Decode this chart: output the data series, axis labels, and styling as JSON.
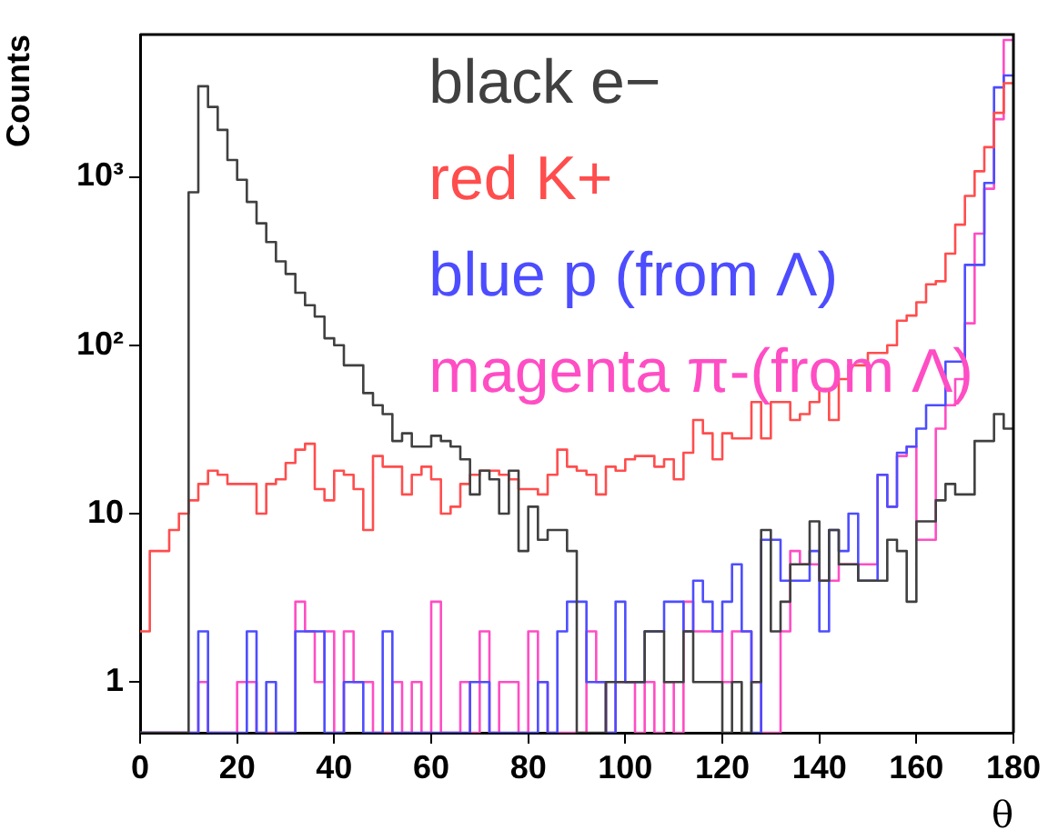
{
  "chart_data": {
    "type": "histogram",
    "xlabel": "θ",
    "ylabel": "Counts",
    "log": "y",
    "legend": "top right",
    "marker": "none",
    "bins": [
      0,
      2,
      4,
      6,
      8,
      10,
      12,
      14,
      16,
      18,
      20,
      22,
      24,
      26,
      28,
      30,
      32,
      34,
      36,
      38,
      40,
      42,
      44,
      46,
      48,
      50,
      52,
      54,
      56,
      58,
      60,
      62,
      64,
      66,
      68,
      70,
      72,
      74,
      76,
      78,
      80,
      82,
      84,
      86,
      88,
      90,
      92,
      94,
      96,
      98,
      100,
      102,
      104,
      106,
      108,
      110,
      112,
      114,
      116,
      118,
      120,
      122,
      124,
      126,
      128,
      130,
      132,
      134,
      136,
      138,
      140,
      142,
      144,
      146,
      148,
      150,
      152,
      154,
      156,
      158,
      160,
      162,
      164,
      166,
      168,
      170,
      172,
      174,
      176,
      178,
      180
    ],
    "xlim": [
      0,
      180
    ],
    "xticks": [
      0,
      20,
      40,
      60,
      80,
      100,
      120,
      140,
      160,
      180
    ],
    "ylim": [
      0.5,
      7000
    ],
    "yticks": [
      1,
      10,
      {
        "value": 100,
        "label": "10²"
      },
      {
        "value": 1000,
        "label": "10³"
      }
    ],
    "series": [
      {
        "name": "black e−",
        "color": "#404040",
        "values": [
          null,
          null,
          null,
          null,
          null,
          810,
          3450,
          2600,
          1900,
          1260,
          960,
          710,
          530,
          410,
          315,
          265,
          205,
          173,
          148,
          110,
          100,
          76,
          76,
          52,
          44,
          39,
          27,
          30,
          25,
          25,
          29,
          27,
          25,
          21,
          13,
          18,
          16,
          10,
          18,
          6,
          11,
          7,
          8,
          8,
          6,
          null,
          null,
          null,
          1,
          1,
          1,
          1,
          2,
          2,
          1,
          1,
          2,
          1,
          1,
          1,
          null,
          1,
          null,
          1,
          8,
          2,
          3,
          5,
          5,
          9,
          4,
          8,
          5,
          5,
          4,
          4,
          4,
          7,
          6,
          3,
          9,
          9,
          12,
          15,
          13,
          13,
          27,
          27,
          39,
          32
        ]
      },
      {
        "name": "red K+",
        "color": "#ff4d4d",
        "values": [
          2,
          6,
          6,
          8,
          10,
          12,
          15,
          18,
          17,
          15,
          15,
          15,
          10,
          15,
          16,
          20,
          24,
          26,
          14,
          12,
          18,
          17,
          14,
          8,
          22,
          19,
          19,
          13,
          17,
          19,
          16,
          10,
          11,
          15,
          17,
          18,
          18,
          17,
          16,
          14,
          14,
          13,
          17,
          24,
          19,
          18,
          17,
          13,
          19,
          18,
          21,
          22,
          22,
          19,
          21,
          16,
          23,
          36,
          30,
          21,
          30,
          28,
          28,
          46,
          28,
          46,
          46,
          36,
          39,
          46,
          55,
          36,
          63,
          76,
          76,
          90,
          90,
          100,
          140,
          150,
          180,
          230,
          240,
          350,
          520,
          770,
          1080,
          1500,
          2400,
          3600
        ]
      },
      {
        "name": "blue p (from Λ)",
        "color": "#4d4dff",
        "values": [
          null,
          null,
          null,
          null,
          null,
          null,
          2,
          null,
          null,
          null,
          null,
          2,
          null,
          1,
          null,
          null,
          2,
          2,
          2,
          null,
          null,
          1,
          1,
          null,
          null,
          2,
          null,
          null,
          null,
          null,
          null,
          null,
          null,
          null,
          1,
          1,
          null,
          null,
          null,
          null,
          null,
          1,
          null,
          2,
          3,
          3,
          1,
          1,
          null,
          3,
          1,
          1,
          2,
          2,
          3,
          3,
          2,
          4,
          3,
          2,
          3,
          5,
          2,
          null,
          7,
          7,
          4,
          4,
          4,
          6,
          2,
          8,
          6,
          10,
          4,
          4,
          17,
          11,
          23,
          25,
          32,
          44,
          44,
          80,
          80,
          300,
          300,
          920,
          3400,
          4000
        ]
      },
      {
        "name": "magenta π-(from Λ)",
        "color": "#ff4dc4",
        "values": [
          null,
          null,
          null,
          null,
          null,
          null,
          1,
          null,
          null,
          null,
          1,
          1,
          null,
          null,
          null,
          null,
          3,
          2,
          1,
          2,
          null,
          2,
          1,
          1,
          null,
          null,
          1,
          null,
          1,
          null,
          3,
          null,
          null,
          1,
          null,
          2,
          null,
          1,
          1,
          null,
          2,
          1,
          null,
          null,
          null,
          null,
          2,
          1,
          null,
          1,
          1,
          null,
          1,
          null,
          1,
          null,
          3,
          2,
          2,
          2,
          1,
          2,
          2,
          1,
          null,
          null,
          2,
          6,
          5,
          5,
          4,
          4,
          5,
          5,
          5,
          5,
          17,
          11,
          22,
          25,
          7,
          7,
          32,
          44,
          63,
          135,
          460,
          850,
          2200,
          6500
        ]
      }
    ]
  }
}
